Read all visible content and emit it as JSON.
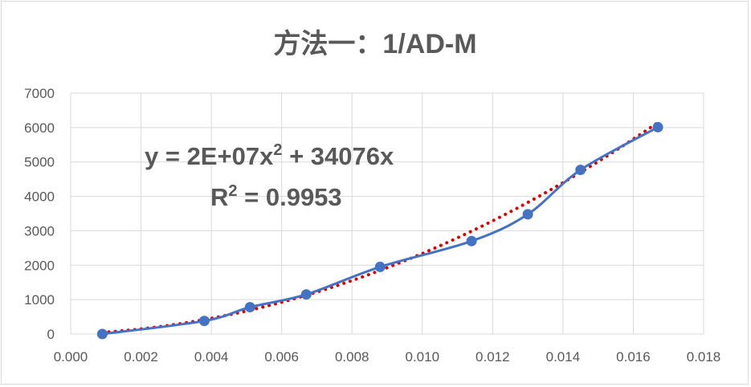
{
  "chart_data": {
    "type": "scatter",
    "title": "方法一：1/AD-M",
    "xlabel": "",
    "ylabel": "",
    "xlim": [
      0,
      0.018
    ],
    "ylim": [
      0,
      7000
    ],
    "x_ticks": [
      "0.000",
      "0.002",
      "0.004",
      "0.006",
      "0.008",
      "0.010",
      "0.012",
      "0.014",
      "0.016",
      "0.018"
    ],
    "y_ticks": [
      "0",
      "1000",
      "2000",
      "3000",
      "4000",
      "5000",
      "6000",
      "7000"
    ],
    "grid": true,
    "series": [
      {
        "marker": "circle",
        "line": "smooth",
        "color": "#4472c4",
        "x": [
          0.0009,
          0.0038,
          0.0051,
          0.0067,
          0.0088,
          0.0114,
          0.013,
          0.0145,
          0.0167
        ],
        "y": [
          0,
          380,
          780,
          1150,
          1950,
          2700,
          3480,
          4770,
          6010
        ]
      }
    ],
    "trendline": {
      "type": "polynomial",
      "color": "#e00000",
      "style": "dotted",
      "a": 20000000,
      "b": 34076,
      "c": 0
    },
    "annotations": {
      "equation_prefix": "y = 2E+07x",
      "equation_sup": "2",
      "equation_suffix": " + 34076x",
      "r2_prefix": "R",
      "r2_sup": "2",
      "r2_suffix": " = 0.9953"
    }
  }
}
